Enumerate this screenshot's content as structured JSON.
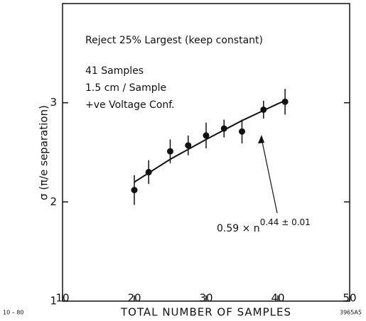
{
  "chart_data": {
    "type": "scatter",
    "xlabel": "TOTAL NUMBER OF SAMPLES",
    "ylabel": "σ (π/e separation)",
    "annotations": [
      "Reject 25% Largest (keep constant)",
      "41 Samples",
      "1.5 cm / Sample",
      "+ve Voltage Conf."
    ],
    "fit_label": {
      "base": "0.59 × n",
      "exponent": "0.44 ± 0.01"
    },
    "footer_left": "10 – 80",
    "footer_right": "3965A5",
    "x": [
      20,
      22,
      25,
      27.5,
      30,
      32.5,
      35,
      38,
      41
    ],
    "series": [
      {
        "name": "data",
        "color": "#111",
        "values": [
          2.12,
          2.3,
          2.51,
          2.57,
          2.67,
          2.74,
          2.71,
          2.93,
          3.01
        ],
        "errors": [
          0.15,
          0.12,
          0.12,
          0.1,
          0.13,
          0.09,
          0.12,
          0.09,
          0.13
        ]
      },
      {
        "name": "fit",
        "color": "#111",
        "x": [
          20,
          25,
          30,
          35,
          40,
          41
        ],
        "values": [
          2.2,
          2.43,
          2.63,
          2.82,
          2.99,
          3.02
        ]
      }
    ],
    "xlim": [
      10,
      50
    ],
    "xticks": [
      10,
      20,
      30,
      40,
      50
    ],
    "ylim": [
      1,
      4
    ],
    "yticks": [
      1,
      2,
      3
    ]
  }
}
